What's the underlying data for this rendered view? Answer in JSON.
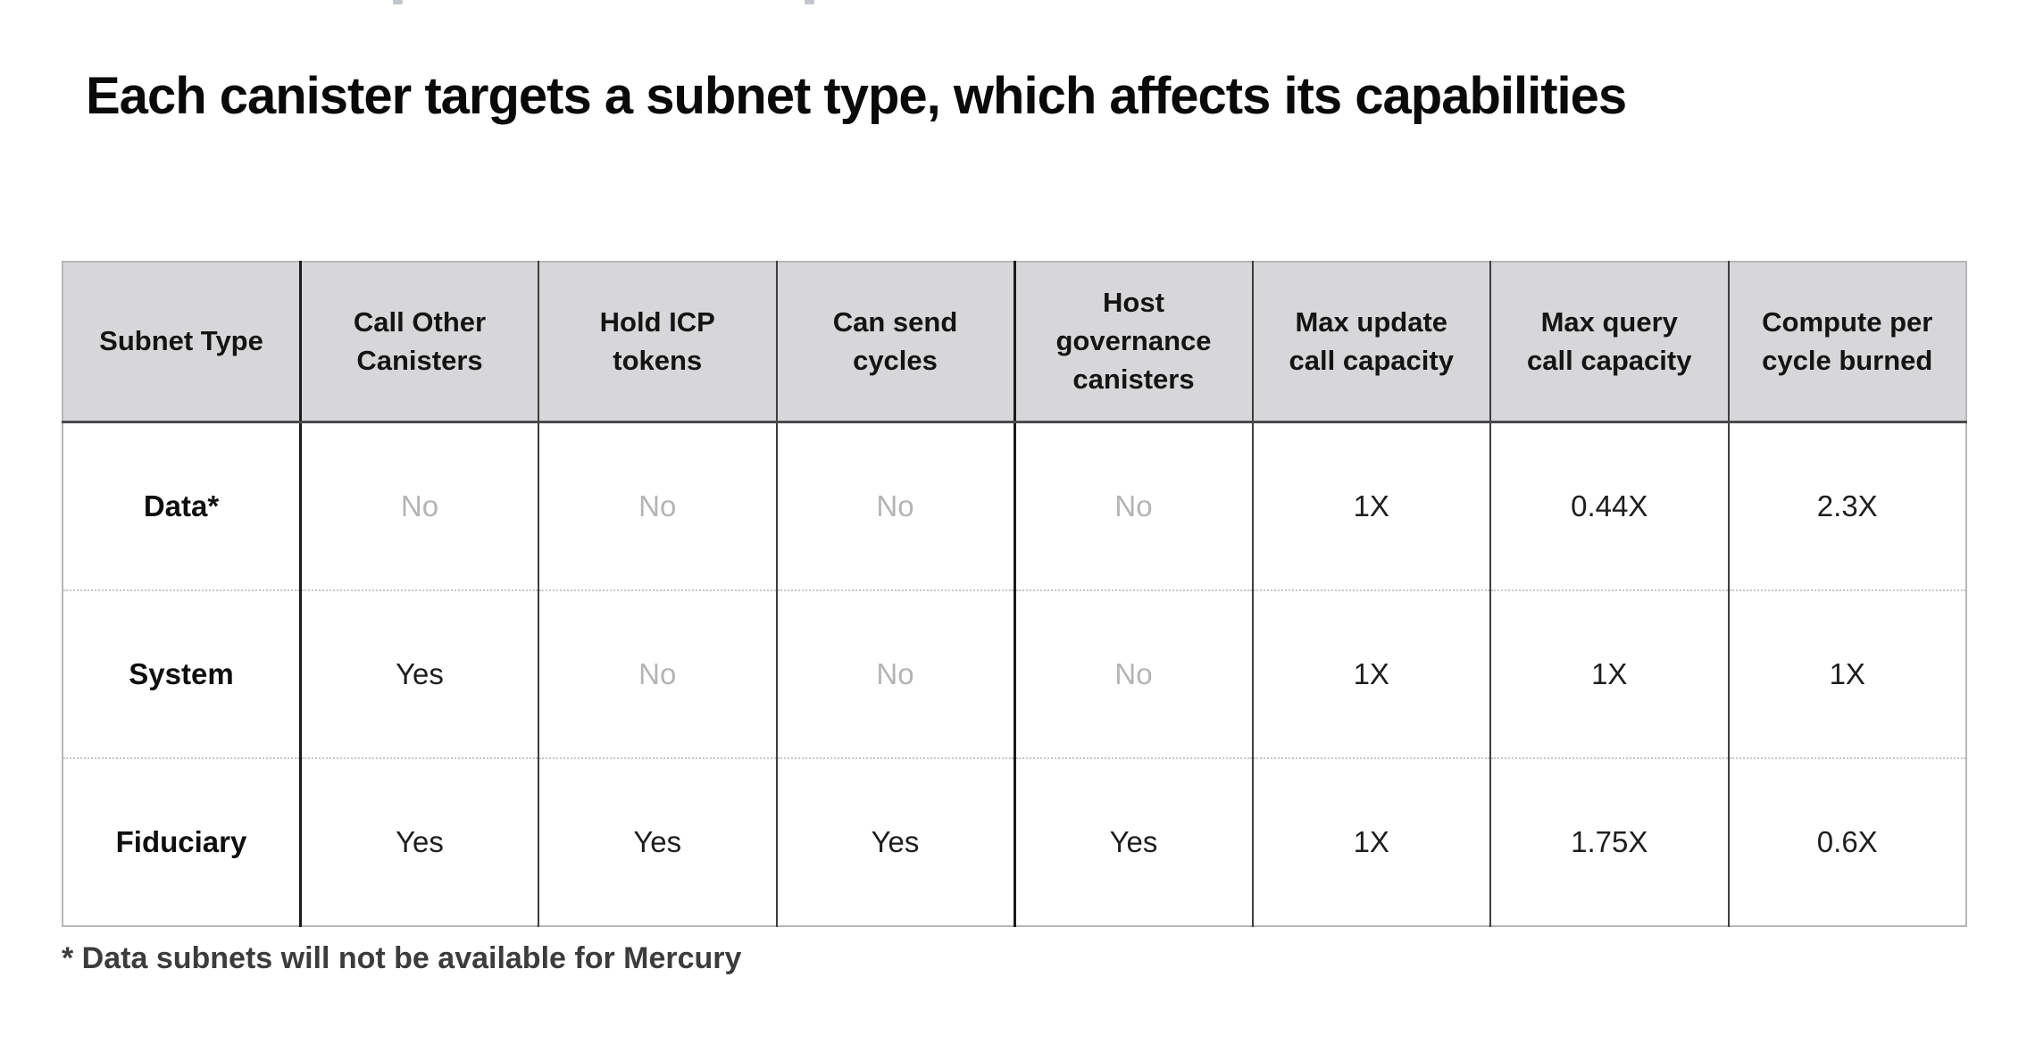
{
  "title": "Each canister targets a subnet type, which affects its capabilities",
  "table": {
    "columns": [
      "Subnet Type",
      "Call Other Canisters",
      "Hold ICP tokens",
      "Can send cycles",
      "Host governance canisters",
      "Max update call capacity",
      "Max query call capacity",
      "Compute per cycle burned"
    ],
    "rows": [
      {
        "label": "Data*",
        "cells": [
          "No",
          "No",
          "No",
          "No",
          "1X",
          "0.44X",
          "2.3X"
        ]
      },
      {
        "label": "System",
        "cells": [
          "Yes",
          "No",
          "No",
          "No",
          "1X",
          "1X",
          "1X"
        ]
      },
      {
        "label": "Fiduciary",
        "cells": [
          "Yes",
          "Yes",
          "Yes",
          "Yes",
          "1X",
          "1.75X",
          "0.6X"
        ]
      }
    ]
  },
  "footnote": "* Data subnets will not be available for Mercury",
  "colors": {
    "header_background": "#d7d7da",
    "muted_no_text": "#b4b4b4",
    "divider_dark": "#1b1b1b",
    "divider_regular": "#3e3e3e",
    "outer_border": "#b7b7b9",
    "dotted_separator": "#c6c6c6",
    "footnote_text": "#3c3c3c",
    "title_text": "#0a0a0a"
  }
}
